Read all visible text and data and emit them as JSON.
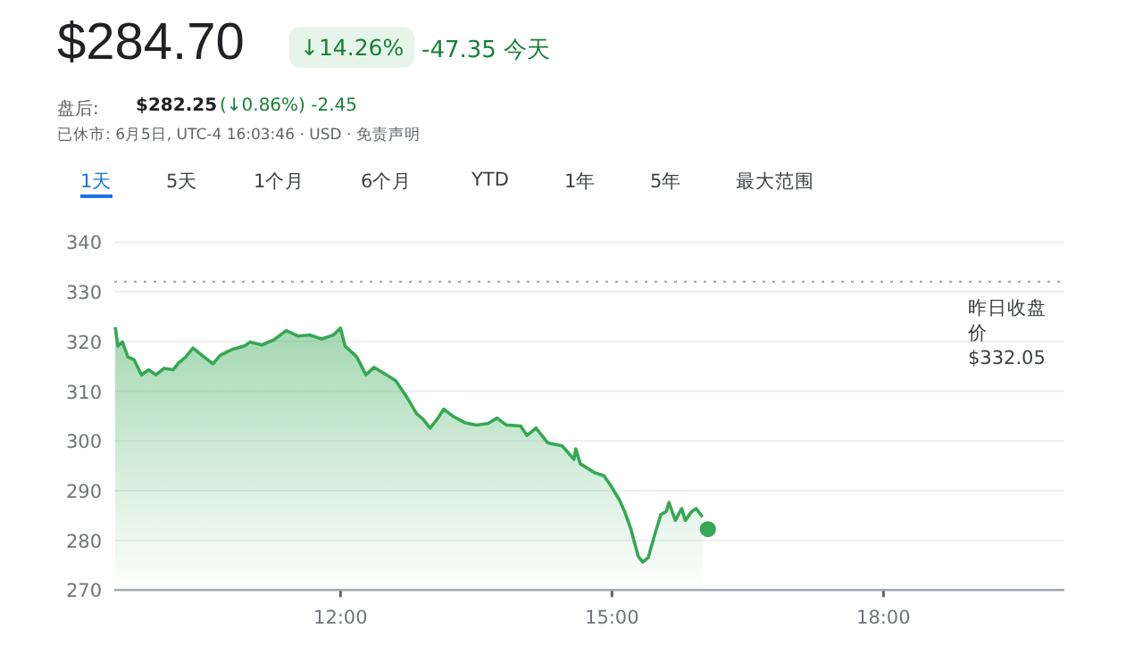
{
  "chart_data": {
    "type": "area",
    "title": "$284.70",
    "annotations": [
      "↓14.26%",
      "-47.35 今天",
      "盘后:",
      "$282.25",
      "(↓0.86%) -2.45",
      "已休市: 6月5日, UTC-4 16:03:46 · USD · 免责声明",
      "1天",
      "5天",
      "1个月",
      "6个月",
      "YTD",
      "1年",
      "5年",
      "最大范围",
      "$332.05"
    ],
    "series": [
      {
        "type": "area",
        "color": "#34a853",
        "x": [
          9.51,
          9.54,
          9.59,
          9.65,
          9.72,
          9.8,
          9.88,
          9.96,
          10.05,
          10.15,
          10.21,
          10.29,
          10.37,
          10.47,
          10.59,
          10.67,
          10.8,
          10.94,
          11.0,
          11.13,
          11.26,
          11.4,
          11.53,
          11.66,
          11.79,
          11.92,
          12.0,
          12.05,
          12.18,
          12.28,
          12.37,
          12.48,
          12.61,
          12.74,
          12.84,
          12.91,
          12.99,
          13.07,
          13.14,
          13.24,
          13.37,
          13.5,
          13.63,
          13.73,
          13.83,
          13.99,
          14.06,
          14.16,
          14.29,
          14.45,
          14.58,
          14.6,
          14.65,
          14.81,
          14.91,
          14.98,
          15.08,
          15.14,
          15.21,
          15.29,
          15.34,
          15.4,
          15.47,
          15.54,
          15.6,
          15.63,
          15.7,
          15.77,
          15.81,
          15.88,
          15.93,
          16.0
        ],
        "values": [
          322.9,
          319.1,
          319.9,
          316.9,
          316.3,
          313.3,
          314.3,
          313.3,
          314.6,
          314.3,
          315.7,
          316.9,
          318.7,
          317.2,
          315.5,
          317.2,
          318.4,
          319.1,
          319.9,
          319.3,
          320.3,
          322.2,
          321.1,
          321.3,
          320.5,
          321.3,
          322.7,
          319.1,
          316.9,
          313.3,
          314.8,
          313.6,
          312.1,
          308.6,
          305.5,
          304.4,
          302.6,
          304.4,
          306.4,
          305.0,
          303.7,
          303.2,
          303.5,
          304.6,
          303.2,
          303.0,
          301.1,
          302.6,
          299.6,
          299.0,
          296.3,
          298.4,
          295.4,
          293.6,
          293.0,
          291.2,
          288.2,
          285.8,
          282.2,
          276.8,
          275.6,
          276.5,
          281.0,
          285.2,
          285.8,
          287.6,
          284.0,
          286.4,
          284.0,
          285.8,
          286.4,
          284.7
        ]
      },
      {
        "type": "scatter",
        "color": "#34a853",
        "marker": "circle",
        "x": [
          16.06
        ],
        "values": [
          282.25
        ]
      }
    ],
    "xlim": [
      9.5,
      20
    ],
    "xticks": [
      {
        "value": 12,
        "label": "12:00"
      },
      {
        "value": 15,
        "label": "15:00"
      },
      {
        "value": 18,
        "label": "18:00"
      }
    ],
    "ylim": [
      270,
      340
    ],
    "yticks": [
      270,
      280,
      290,
      300,
      310,
      320,
      330,
      340
    ],
    "grid": "y",
    "ref_lines": [
      {
        "axis": "y",
        "value": 332.05,
        "label": "昨日收盘价",
        "line_style": "dotted",
        "color": "#9e9e9e"
      }
    ]
  }
}
